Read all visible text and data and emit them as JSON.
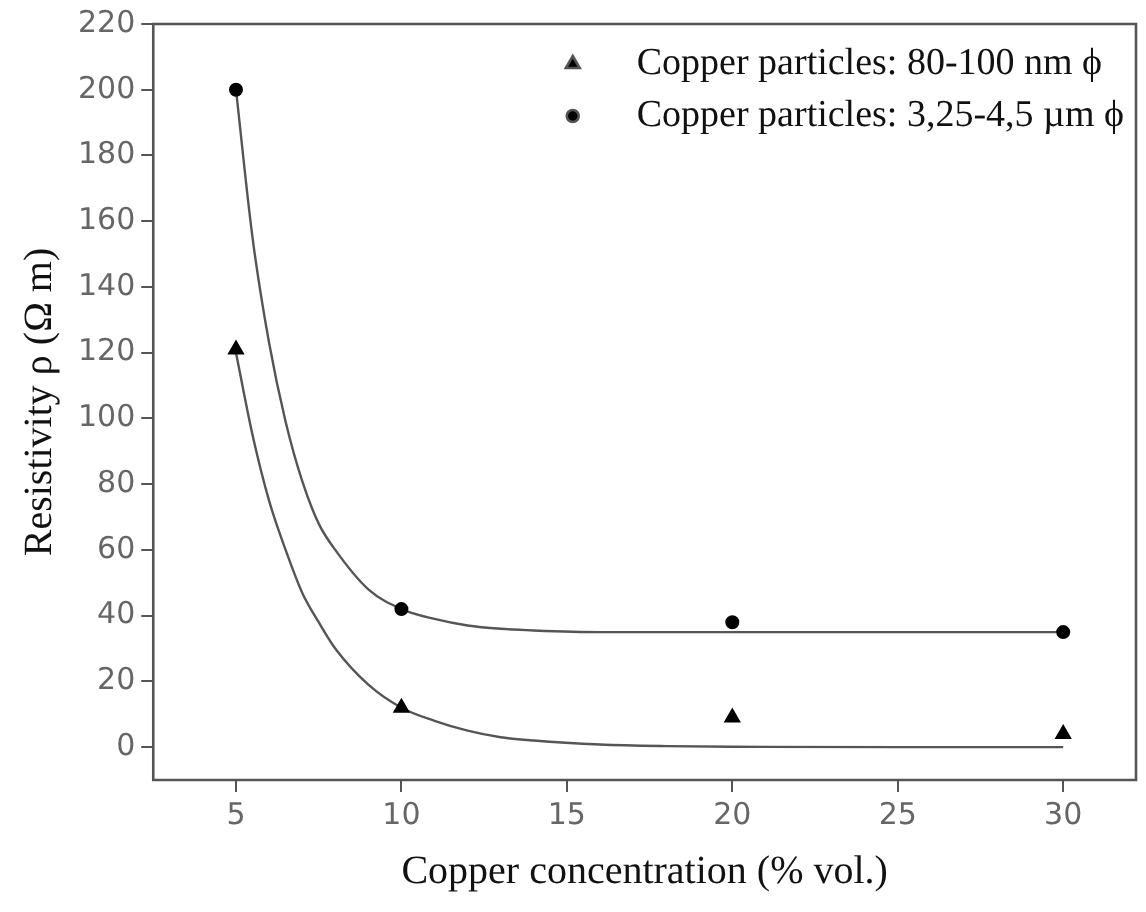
{
  "chart_data": {
    "type": "scatter",
    "xlabel": "Copper concentration (% vol.)",
    "ylabel": "Resistivity ρ (Ω m)",
    "xlim": [
      2.5,
      32.2
    ],
    "xticks": [
      5,
      10,
      15,
      20,
      25,
      30
    ],
    "ylim": [
      -10,
      220
    ],
    "yticks": [
      0,
      20,
      40,
      60,
      80,
      100,
      120,
      140,
      160,
      180,
      200,
      220
    ],
    "grid": false,
    "legend": "top right",
    "series": [
      {
        "name": "Copper particles: 80-100 nm ϕ",
        "color": "#000000",
        "marker": "triangle",
        "x": [
          5,
          10,
          20,
          30
        ],
        "values": [
          121,
          12,
          9,
          4
        ]
      },
      {
        "name": "Copper particles: 3,25-4,5 µm ϕ",
        "color": "#000000",
        "marker": "circle",
        "x": [
          5,
          10,
          20,
          30
        ],
        "values": [
          200,
          42,
          38,
          35
        ]
      },
      {
        "type": "line",
        "color": "#555555",
        "marker": "none",
        "x": [
          5,
          5.5,
          6,
          6.5,
          7,
          7.5,
          8,
          9,
          10,
          11,
          12,
          13,
          14,
          16,
          18,
          20,
          25,
          30
        ],
        "values": [
          120,
          95,
          75,
          60,
          47,
          38,
          30,
          19,
          12,
          8,
          5,
          3,
          2,
          0.8,
          0.3,
          0.1,
          0,
          0
        ]
      },
      {
        "type": "line",
        "color": "#555555",
        "marker": "none",
        "x": [
          5,
          5.5,
          6,
          6.5,
          7,
          7.5,
          8,
          9,
          10,
          11,
          12,
          13,
          14,
          16,
          20,
          25,
          30
        ],
        "values": [
          200,
          155,
          123,
          99,
          81,
          68,
          60,
          48,
          42,
          39,
          37,
          36,
          35.5,
          35,
          35,
          35,
          35
        ]
      }
    ]
  }
}
